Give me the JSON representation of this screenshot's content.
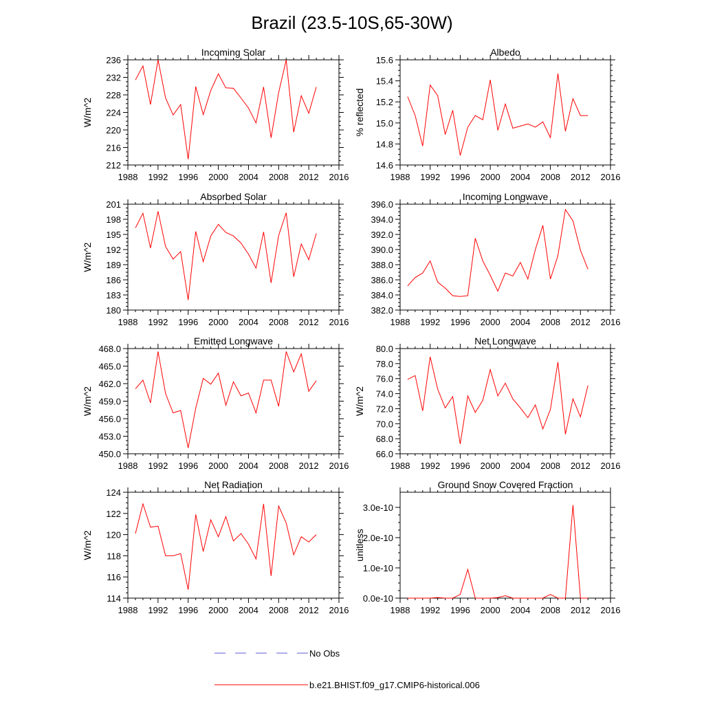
{
  "figure": {
    "title": "Brazil (23.5-10S,65-30W)",
    "legend": [
      {
        "label": "No Obs",
        "color": "#5b5bd6",
        "style": "dashed"
      },
      {
        "label": "b.e21.BHIST.f09_g17.CMIP6-historical.006",
        "color": "#ff0000",
        "style": "solid"
      }
    ],
    "series_color": "#ff0000"
  },
  "chart_data": [
    {
      "type": "line",
      "title": "Incoming Solar",
      "ylabel": "W/m^2",
      "xlim": [
        1988,
        2016
      ],
      "xticks": [
        1988,
        1992,
        1996,
        2000,
        2004,
        2008,
        2012,
        2016
      ],
      "ylim": [
        212,
        236
      ],
      "yticks": [
        212,
        216,
        220,
        224,
        228,
        232,
        236
      ],
      "ytick_decimals": 0,
      "x": [
        1989,
        1990,
        1991,
        1992,
        1993,
        1994,
        1995,
        1996,
        1997,
        1998,
        1999,
        2000,
        2001,
        2002,
        2003,
        2004,
        2005,
        2006,
        2007,
        2008,
        2009,
        2010,
        2011,
        2012,
        2013
      ],
      "values": [
        231.4,
        234.6,
        225.8,
        236.0,
        227.3,
        223.4,
        225.8,
        213.3,
        229.9,
        223.5,
        229.0,
        232.8,
        229.6,
        229.5,
        227.3,
        225.0,
        221.6,
        229.8,
        218.2,
        228.5,
        236.0,
        219.5,
        227.8,
        223.8,
        229.8
      ]
    },
    {
      "type": "line",
      "title": "Albedo",
      "ylabel": "% reflected",
      "xlim": [
        1988,
        2016
      ],
      "xticks": [
        1988,
        1992,
        1996,
        2000,
        2004,
        2008,
        2012,
        2016
      ],
      "ylim": [
        14.6,
        15.6
      ],
      "yticks": [
        14.6,
        14.8,
        15.0,
        15.2,
        15.4,
        15.6
      ],
      "ytick_decimals": 1,
      "x": [
        1989,
        1990,
        1991,
        1992,
        1993,
        1994,
        1995,
        1996,
        1997,
        1998,
        1999,
        2000,
        2001,
        2002,
        2003,
        2004,
        2005,
        2006,
        2007,
        2008,
        2009,
        2010,
        2011,
        2012,
        2013
      ],
      "values": [
        15.25,
        15.07,
        14.78,
        15.36,
        15.26,
        14.89,
        15.12,
        14.69,
        14.96,
        15.07,
        15.03,
        15.41,
        14.93,
        15.18,
        14.95,
        14.97,
        14.99,
        14.96,
        15.01,
        14.86,
        15.47,
        14.92,
        15.23,
        15.07,
        15.07
      ]
    },
    {
      "type": "line",
      "title": "Absorbed Solar",
      "ylabel": "W/m^2",
      "xlim": [
        1988,
        2016
      ],
      "xticks": [
        1988,
        1992,
        1996,
        2000,
        2004,
        2008,
        2012,
        2016
      ],
      "ylim": [
        180,
        201
      ],
      "yticks": [
        180,
        183,
        186,
        189,
        192,
        195,
        198,
        201
      ],
      "ytick_decimals": 0,
      "x": [
        1989,
        1990,
        1991,
        1992,
        1993,
        1994,
        1995,
        1996,
        1997,
        1998,
        1999,
        2000,
        2001,
        2002,
        2003,
        2004,
        2005,
        2006,
        2007,
        2008,
        2009,
        2010,
        2011,
        2012,
        2013
      ],
      "values": [
        196.3,
        199.2,
        192.3,
        199.6,
        192.6,
        190.1,
        191.6,
        182.0,
        195.6,
        189.6,
        194.7,
        197.0,
        195.4,
        194.7,
        193.3,
        191.1,
        188.3,
        195.5,
        185.4,
        194.8,
        199.3,
        186.6,
        193.1,
        190.0,
        195.2
      ]
    },
    {
      "type": "line",
      "title": "Incoming Longwave",
      "ylabel": "",
      "xlim": [
        1988,
        2016
      ],
      "xticks": [
        1988,
        1992,
        1996,
        2000,
        2004,
        2008,
        2012,
        2016
      ],
      "ylim": [
        382,
        396
      ],
      "yticks": [
        382,
        384,
        386,
        388,
        390,
        392,
        394,
        396
      ],
      "ytick_decimals": 1,
      "x": [
        1989,
        1990,
        1991,
        1992,
        1993,
        1994,
        1995,
        1996,
        1997,
        1998,
        1999,
        2000,
        2001,
        2002,
        2003,
        2004,
        2005,
        2006,
        2007,
        2008,
        2009,
        2010,
        2011,
        2012,
        2013
      ],
      "values": [
        385.2,
        386.3,
        386.9,
        388.5,
        385.7,
        384.9,
        383.9,
        383.8,
        383.9,
        391.5,
        388.5,
        386.6,
        384.5,
        386.9,
        386.5,
        388.3,
        386.1,
        390.0,
        393.2,
        386.1,
        389.2,
        395.3,
        393.8,
        389.9,
        387.4
      ]
    },
    {
      "type": "line",
      "title": "Emitted Longwave",
      "ylabel": "W/m^2",
      "xlim": [
        1988,
        2016
      ],
      "xticks": [
        1988,
        1992,
        1996,
        2000,
        2004,
        2008,
        2012,
        2016
      ],
      "ylim": [
        450,
        468
      ],
      "yticks": [
        450,
        453,
        456,
        459,
        462,
        465,
        468
      ],
      "ytick_decimals": 1,
      "x": [
        1989,
        1990,
        1991,
        1992,
        1993,
        1994,
        1995,
        1996,
        1997,
        1998,
        1999,
        2000,
        2001,
        2002,
        2003,
        2004,
        2005,
        2006,
        2007,
        2008,
        2009,
        2010,
        2011,
        2012,
        2013
      ],
      "values": [
        461.1,
        462.6,
        458.7,
        467.5,
        460.3,
        457.0,
        457.4,
        451.0,
        457.8,
        462.9,
        461.9,
        463.8,
        458.3,
        462.3,
        459.9,
        460.4,
        457.0,
        462.6,
        462.6,
        458.1,
        467.5,
        464.0,
        467.1,
        460.7,
        462.5
      ]
    },
    {
      "type": "line",
      "title": "Net Longwave",
      "ylabel": "W/m^2",
      "xlim": [
        1988,
        2016
      ],
      "xticks": [
        1988,
        1992,
        1996,
        2000,
        2004,
        2008,
        2012,
        2016
      ],
      "ylim": [
        66,
        80
      ],
      "yticks": [
        66,
        68,
        70,
        72,
        74,
        76,
        78,
        80
      ],
      "ytick_decimals": 1,
      "x": [
        1989,
        1990,
        1991,
        1992,
        1993,
        1994,
        1995,
        1996,
        1997,
        1998,
        1999,
        2000,
        2001,
        2002,
        2003,
        2004,
        2005,
        2006,
        2007,
        2008,
        2009,
        2010,
        2011,
        2012,
        2013
      ],
      "values": [
        75.9,
        76.4,
        71.7,
        78.9,
        74.6,
        72.1,
        73.6,
        67.3,
        73.7,
        71.5,
        73.1,
        77.2,
        73.7,
        75.4,
        73.3,
        72.1,
        70.8,
        72.5,
        69.3,
        71.9,
        78.2,
        68.6,
        73.3,
        70.9,
        75.1
      ]
    },
    {
      "type": "line",
      "title": "Net Radiation",
      "ylabel": "W/m^2",
      "xlim": [
        1988,
        2016
      ],
      "xticks": [
        1988,
        1992,
        1996,
        2000,
        2004,
        2008,
        2012,
        2016
      ],
      "ylim": [
        114,
        124
      ],
      "yticks": [
        114,
        116,
        118,
        120,
        122,
        124
      ],
      "ytick_decimals": 0,
      "x": [
        1989,
        1990,
        1991,
        1992,
        1993,
        1994,
        1995,
        1996,
        1997,
        1998,
        1999,
        2000,
        2001,
        2002,
        2003,
        2004,
        2005,
        2006,
        2007,
        2008,
        2009,
        2010,
        2011,
        2012,
        2013
      ],
      "values": [
        120.1,
        122.9,
        120.7,
        120.8,
        118.0,
        118.0,
        118.2,
        114.8,
        121.9,
        118.4,
        121.4,
        119.8,
        121.7,
        119.4,
        120.1,
        119.1,
        117.7,
        122.9,
        116.1,
        122.7,
        121.1,
        118.1,
        119.8,
        119.3,
        120.0
      ]
    },
    {
      "type": "line",
      "title": "Ground Snow Covered Fraction",
      "ylabel": "unitless",
      "xlim": [
        1988,
        2016
      ],
      "xticks": [
        1988,
        1992,
        1996,
        2000,
        2004,
        2008,
        2012,
        2016
      ],
      "ylim": [
        0,
        3.5e-10
      ],
      "yticks": [
        0,
        1e-10,
        2e-10,
        3e-10
      ],
      "ytick_decimals": 1,
      "ytick_format": "exp",
      "x": [
        1989,
        1990,
        1991,
        1992,
        1993,
        1994,
        1995,
        1996,
        1997,
        1998,
        1999,
        2000,
        2001,
        2002,
        2003,
        2004,
        2005,
        2006,
        2007,
        2008,
        2009,
        2010,
        2011,
        2012,
        2013
      ],
      "values": [
        0,
        0,
        0,
        0,
        2e-12,
        0,
        0,
        1.2e-11,
        9.5e-11,
        0,
        0,
        0,
        2e-12,
        8e-12,
        0,
        0,
        0,
        0,
        0,
        1.2e-11,
        0,
        0,
        3.08e-10,
        0,
        0
      ]
    }
  ]
}
